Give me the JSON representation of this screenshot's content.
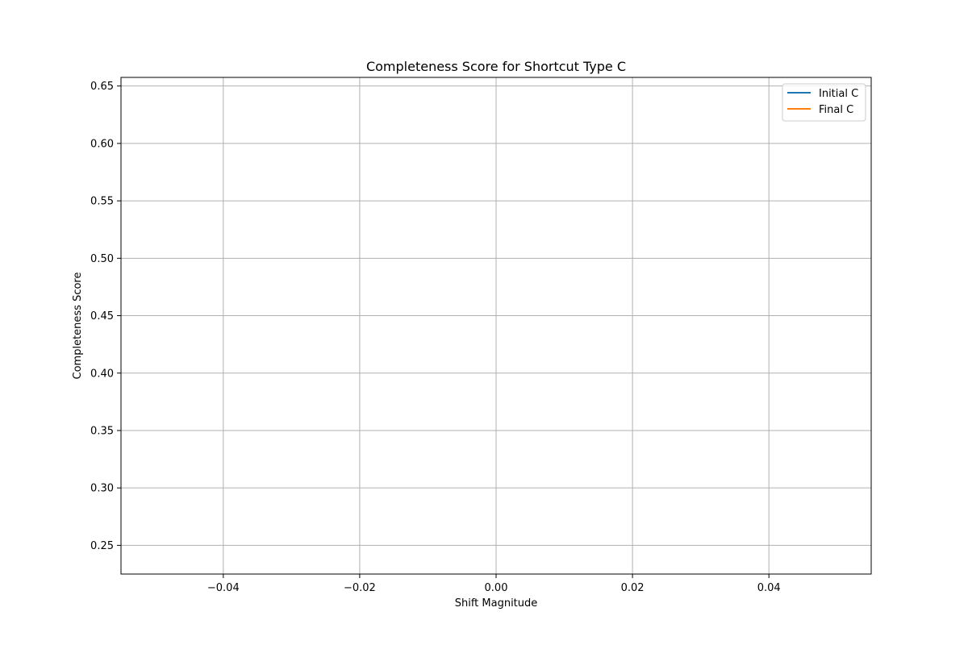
{
  "chart_data": {
    "type": "line",
    "title": "Completeness Score for Shortcut Type C",
    "xlabel": "Shift Magnitude",
    "ylabel": "Completeness Score",
    "xlim": [
      -0.055,
      0.055
    ],
    "ylim": [
      0.225,
      0.6575
    ],
    "xticks": [
      -0.04,
      -0.02,
      0.0,
      0.02,
      0.04
    ],
    "xtick_labels": [
      "−0.04",
      "−0.02",
      "0.00",
      "0.02",
      "0.04"
    ],
    "yticks": [
      0.25,
      0.3,
      0.35,
      0.4,
      0.45,
      0.5,
      0.55,
      0.6,
      0.65
    ],
    "ytick_labels": [
      "0.25",
      "0.30",
      "0.35",
      "0.40",
      "0.45",
      "0.50",
      "0.55",
      "0.60",
      "0.65"
    ],
    "grid": true,
    "legend_position": "top-right",
    "series": [
      {
        "name": "Initial C",
        "color": "#1f77b4",
        "x": [],
        "y": []
      },
      {
        "name": "Final C",
        "color": "#ff7f0e",
        "x": [],
        "y": []
      }
    ]
  }
}
